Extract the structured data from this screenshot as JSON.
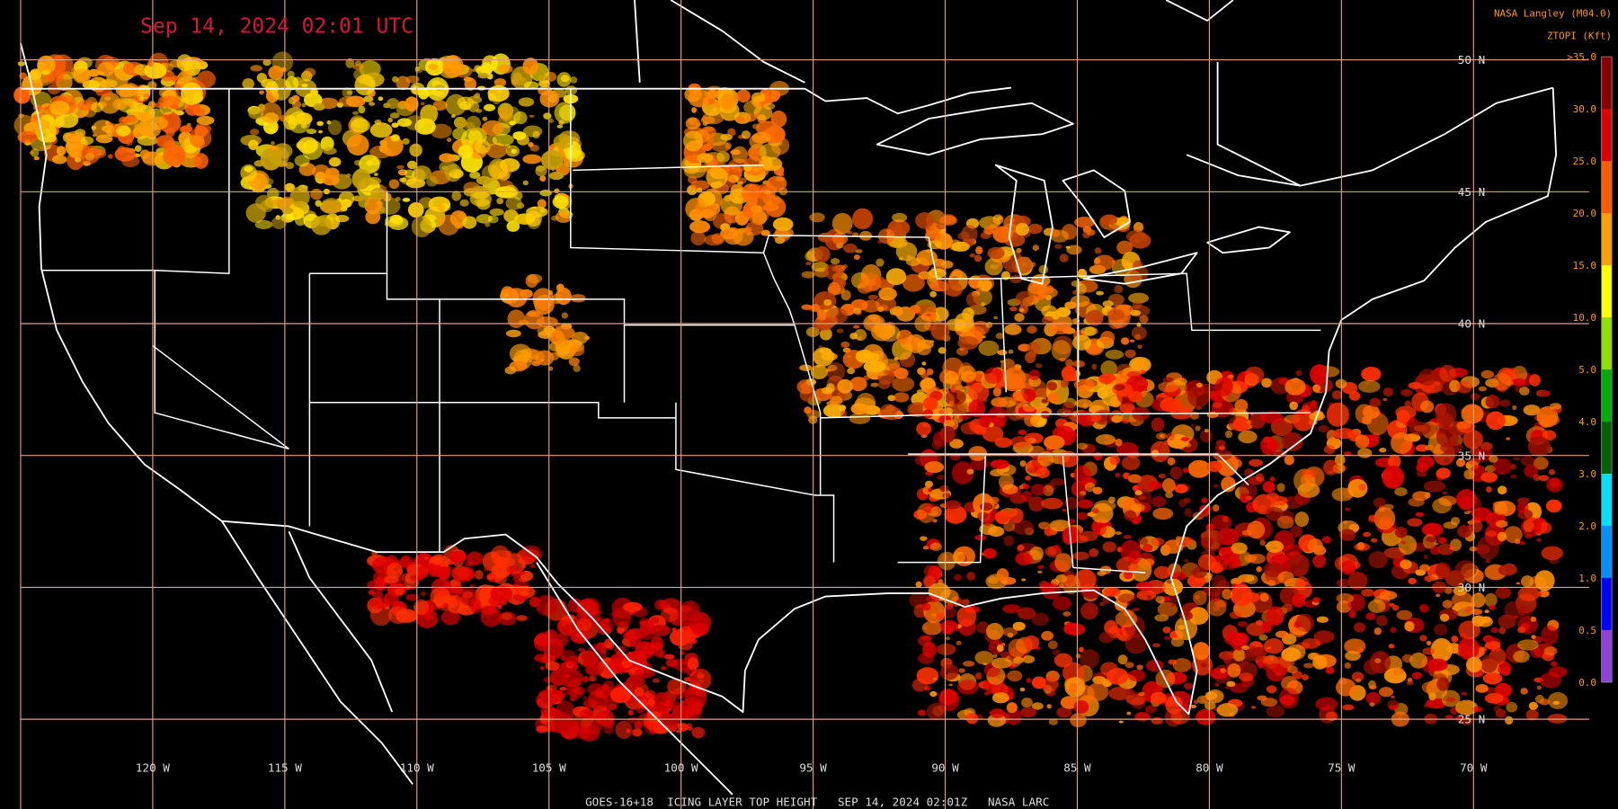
{
  "header": {
    "title": "Sep 14, 2024 02:01 UTC",
    "credit": "NASA Langley (M04.0)",
    "product": "ZTOPI (Kft)"
  },
  "legend": {
    "labels": [
      ">35.0",
      "30.0",
      "25.0",
      "20.0",
      "15.0",
      "10.0",
      "5.0",
      "4.0",
      "3.0",
      "2.0",
      "1.0",
      "0.5",
      "0.0"
    ],
    "colors": [
      "#8b0000",
      "#e00000",
      "#ff5a00",
      "#ffa000",
      "#ffff00",
      "#90e000",
      "#00b000",
      "#006400",
      "#00e0ff",
      "#0090ff",
      "#0000ff",
      "#9040e0"
    ]
  },
  "grid": {
    "lat_labels": [
      "50 N",
      "45 N",
      "40 N",
      "35 N",
      "30 N",
      "25 N"
    ],
    "lon_labels": [
      "120 W",
      "115 W",
      "110 W",
      "105 W",
      "100 W",
      "95 W",
      "90 W",
      "85 W",
      "80 W",
      "75 W",
      "70 W"
    ]
  },
  "footer": "GOES-16+18  ICING LAYER TOP HEIGHT   SEP 14, 2024 02:01Z   NASA LARC"
}
